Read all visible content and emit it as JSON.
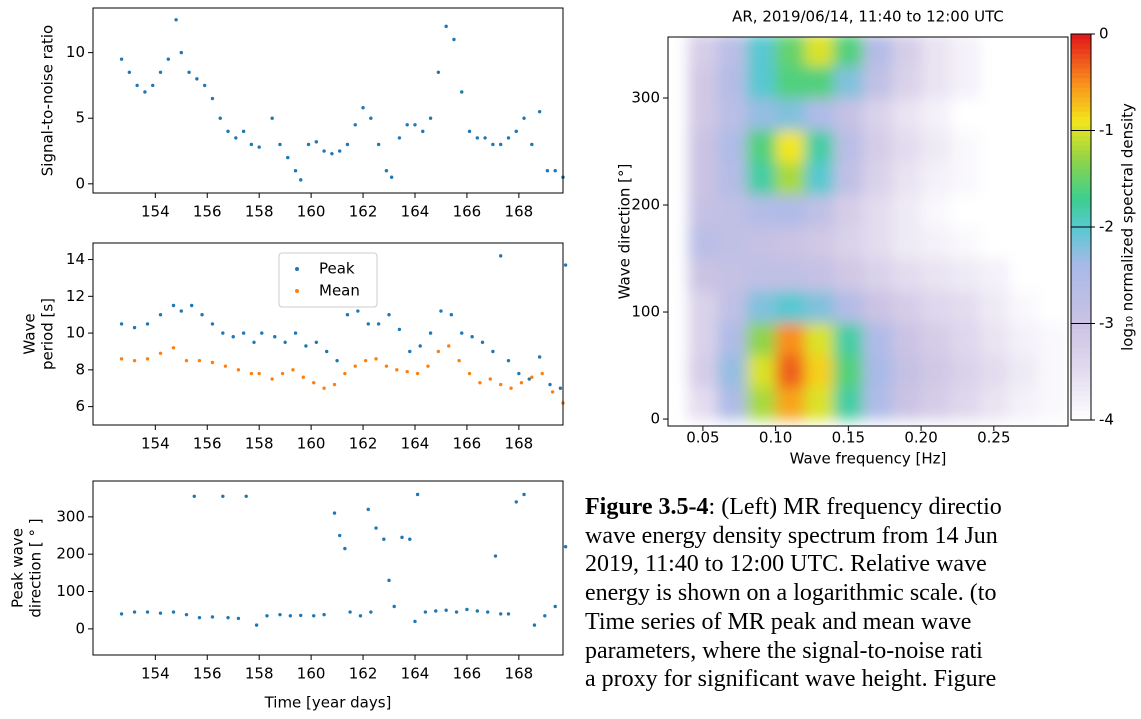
{
  "chart_data": [
    {
      "type": "scatter",
      "ylabel": "Signal-to-noise ratio",
      "xlim": [
        151.6,
        169.7
      ],
      "xticks": [
        154,
        156,
        158,
        160,
        162,
        164,
        166,
        168
      ],
      "ylim": [
        -0.7,
        13.4
      ],
      "yticks": [
        0,
        5,
        10
      ],
      "series": [
        {
          "color": "#1f77b4",
          "x": [
            152.7,
            153.0,
            153.3,
            153.6,
            153.9,
            154.2,
            154.5,
            154.8,
            155.0,
            155.3,
            155.6,
            155.9,
            156.2,
            156.5,
            156.8,
            157.1,
            157.4,
            157.7,
            158.0,
            158.5,
            158.8,
            159.1,
            159.4,
            159.6,
            159.9,
            160.2,
            160.5,
            160.8,
            161.1,
            161.4,
            161.7,
            162.0,
            162.3,
            162.6,
            162.9,
            163.1,
            163.4,
            163.7,
            164.0,
            164.3,
            164.6,
            164.9,
            165.2,
            165.5,
            165.8,
            166.1,
            166.4,
            166.7,
            167.0,
            167.3,
            167.6,
            167.9,
            168.2,
            168.5,
            168.8,
            169.1,
            169.4,
            169.7
          ],
          "values": [
            9.5,
            8.5,
            7.5,
            7.0,
            7.5,
            8.5,
            9.5,
            12.5,
            10,
            8.5,
            8.0,
            7.5,
            6.5,
            5,
            4,
            3.5,
            4,
            3,
            2.8,
            5,
            3,
            2,
            1,
            0.3,
            3,
            3.2,
            2.5,
            2.3,
            2.5,
            3,
            4.5,
            5.8,
            5,
            3,
            1,
            0.5,
            3.5,
            4.5,
            4.5,
            4,
            5,
            8.5,
            12,
            11,
            7,
            4,
            3.5,
            3.5,
            3,
            3,
            3.5,
            4,
            5,
            3,
            5.5,
            1,
            1,
            0.5
          ]
        }
      ]
    },
    {
      "type": "scatter",
      "ylabel": [
        "Wave",
        "period [s]"
      ],
      "xlim": [
        151.6,
        169.7
      ],
      "xticks": [
        154,
        156,
        158,
        160,
        162,
        164,
        166,
        168
      ],
      "ylim": [
        5.0,
        14.9
      ],
      "yticks": [
        6,
        8,
        10,
        12,
        14
      ],
      "legend": "upper center",
      "series": [
        {
          "name": "Peak",
          "color": "#1f77b4",
          "x": [
            152.7,
            153.2,
            153.7,
            154.2,
            154.7,
            155.0,
            155.4,
            155.8,
            156.2,
            156.6,
            157.0,
            157.4,
            157.8,
            158.1,
            158.6,
            159.0,
            159.4,
            159.8,
            160.2,
            160.6,
            161.0,
            161.4,
            161.8,
            162.2,
            162.6,
            163.0,
            163.4,
            163.8,
            164.2,
            164.6,
            165.0,
            165.4,
            165.8,
            166.2,
            166.6,
            167.0,
            167.3,
            167.6,
            168.0,
            168.4,
            168.8,
            169.2,
            169.6,
            169.8
          ],
          "values": [
            10.5,
            10.3,
            10.5,
            11,
            11.5,
            11.2,
            11.5,
            11,
            10.5,
            10,
            9.8,
            10,
            9.5,
            10,
            9.8,
            9.5,
            10,
            9.3,
            9.5,
            9,
            8.5,
            11,
            11.2,
            10.5,
            10.5,
            11,
            10.2,
            9,
            9.3,
            10,
            11.2,
            11,
            10,
            9.8,
            9.5,
            9,
            14.2,
            8.5,
            7.8,
            7.5,
            8.7,
            7.2,
            7.0,
            13.7
          ]
        },
        {
          "name": "Mean",
          "color": "#ff7f0e",
          "x": [
            152.7,
            153.2,
            153.7,
            154.2,
            154.7,
            155.2,
            155.7,
            156.2,
            156.7,
            157.2,
            157.7,
            158.0,
            158.5,
            158.9,
            159.3,
            159.7,
            160.1,
            160.5,
            160.9,
            161.3,
            161.7,
            162.1,
            162.5,
            162.9,
            163.3,
            163.7,
            164.1,
            164.5,
            164.9,
            165.3,
            165.7,
            166.1,
            166.5,
            166.9,
            167.3,
            167.7,
            168.1,
            168.5,
            168.9,
            169.3,
            169.7
          ],
          "values": [
            8.6,
            8.5,
            8.6,
            8.9,
            9.2,
            8.5,
            8.5,
            8.4,
            8.2,
            8.0,
            7.8,
            7.8,
            7.5,
            7.8,
            8,
            7.6,
            7.3,
            7.0,
            7.2,
            7.8,
            8.2,
            8.5,
            8.6,
            8.2,
            8.0,
            7.9,
            7.8,
            8.2,
            9.0,
            9.3,
            8.5,
            7.8,
            7.3,
            7.5,
            7.2,
            7.0,
            7.3,
            7.6,
            7.8,
            6.8,
            6.2
          ]
        }
      ]
    },
    {
      "type": "scatter",
      "ylabel": [
        "Peak wave",
        "direction [ ° ]"
      ],
      "xlabel": "Time [year days]",
      "xlim": [
        151.6,
        169.7
      ],
      "xticks": [
        154,
        156,
        158,
        160,
        162,
        164,
        166,
        168
      ],
      "ylim": [
        -70,
        396
      ],
      "yticks": [
        0,
        100,
        200,
        300
      ],
      "series": [
        {
          "color": "#1f77b4",
          "x": [
            152.7,
            153.2,
            153.7,
            154.2,
            154.7,
            155.2,
            155.5,
            155.7,
            156.2,
            156.6,
            156.8,
            157.2,
            157.5,
            157.9,
            158.3,
            158.8,
            159.2,
            159.6,
            160.1,
            160.5,
            160.9,
            161.1,
            161.3,
            161.5,
            161.9,
            162.2,
            162.3,
            162.5,
            162.8,
            163.0,
            163.2,
            163.5,
            163.8,
            164.0,
            164.1,
            164.4,
            164.8,
            165.2,
            165.6,
            166.0,
            166.4,
            166.8,
            167.1,
            167.3,
            167.6,
            167.9,
            168.2,
            168.6,
            169.0,
            169.4,
            169.8
          ],
          "values": [
            40,
            45,
            45,
            42,
            45,
            38,
            355,
            30,
            32,
            355,
            30,
            28,
            355,
            10,
            35,
            38,
            35,
            36,
            35,
            38,
            310,
            250,
            215,
            45,
            35,
            320,
            45,
            270,
            240,
            130,
            60,
            245,
            240,
            20,
            360,
            45,
            48,
            50,
            45,
            52,
            48,
            45,
            195,
            40,
            40,
            340,
            360,
            10,
            35,
            60,
            220
          ]
        }
      ]
    },
    {
      "type": "heatmap",
      "title": "AR, 2019/06/14, 11:40 to 12:00 UTC",
      "xlabel": "Wave frequency [Hz]",
      "ylabel": "Wave direction [°]",
      "xlim": [
        0.026,
        0.301
      ],
      "xticks": [
        0.05,
        {
          "value": 0.1,
          "label": "0.10"
        },
        0.15,
        {
          "value": 0.2,
          "label": "0.20"
        },
        0.25
      ],
      "ylim": [
        -6.5,
        357
      ],
      "yticks": [
        0,
        100,
        200,
        300
      ],
      "x": [
        0.05,
        0.07,
        0.09,
        0.11,
        0.13,
        0.15,
        0.17,
        0.19,
        0.21,
        0.23,
        0.25,
        0.27,
        0.29
      ],
      "y": [
        15,
        45,
        75,
        105,
        135,
        165,
        195,
        225,
        255,
        285,
        315,
        345
      ],
      "z": [
        [
          -3.5,
          -2.5,
          -1.2,
          -0.6,
          -1.0,
          -1.8,
          -2.5,
          -3,
          -3.2,
          -3.4,
          -3.6,
          -3.8,
          -3.9
        ],
        [
          -3.2,
          -2.3,
          -1.0,
          -0.3,
          -0.8,
          -1.6,
          -2.4,
          -2.9,
          -3.1,
          -3.3,
          -3.5,
          -3.7,
          -3.9
        ],
        [
          -3.3,
          -2.5,
          -1.3,
          -0.5,
          -1.0,
          -1.8,
          -2.5,
          -3,
          -3.2,
          -3.4,
          -3.6,
          -3.8,
          -3.9
        ],
        [
          -3.3,
          -2.8,
          -2.2,
          -2.0,
          -2.2,
          -2.6,
          -3,
          -3.2,
          -3.4,
          -3.5,
          -3.7,
          -3.9,
          null
        ],
        [
          -3.0,
          -2.9,
          -2.8,
          -2.8,
          -2.9,
          -3.1,
          -3.3,
          -3.5,
          -3.6,
          -3.7,
          -3.8,
          null,
          null
        ],
        [
          -2.7,
          -2.8,
          -2.9,
          -3.0,
          -3.1,
          -3.3,
          -3.5,
          -3.7,
          -3.8,
          -3.9,
          null,
          null,
          null
        ],
        [
          -2.9,
          -2.8,
          -2.6,
          -2.5,
          -2.8,
          -3.2,
          -3.5,
          -3.7,
          -3.9,
          null,
          null,
          null,
          null
        ],
        [
          -3.0,
          -2.6,
          -1.8,
          -1.2,
          -2.0,
          -2.8,
          -3.3,
          -3.6,
          -3.8,
          -3.9,
          null,
          null,
          null
        ],
        [
          -3.0,
          -2.5,
          -1.6,
          -0.9,
          -1.8,
          -2.7,
          -3.2,
          -3.5,
          -3.7,
          -3.9,
          null,
          null,
          null
        ],
        [
          -3.1,
          -2.7,
          -2.3,
          -2.2,
          -2.5,
          -2.9,
          -3.3,
          -3.6,
          -3.8,
          null,
          null,
          null,
          null
        ],
        [
          -3.1,
          -2.6,
          -2.0,
          -1.6,
          -1.6,
          -2.2,
          -2.8,
          -3.3,
          -3.6,
          -3.8,
          null,
          null,
          null
        ],
        [
          -3.2,
          -2.7,
          -2.0,
          -1.5,
          -1.0,
          -1.6,
          -2.6,
          -3.2,
          -3.6,
          -3.8,
          null,
          null,
          null
        ]
      ],
      "colorbar": {
        "label": "log₁₀ normalized spectral density",
        "lim": [
          -4,
          0
        ],
        "ticks": [
          0,
          -1,
          -2,
          -3,
          -4
        ]
      },
      "colorscale": [
        {
          "value": 0,
          "color": "#e0161b"
        },
        {
          "value": -0.5,
          "color": "#f98e1c"
        },
        {
          "value": -0.9,
          "color": "#f3e61b"
        },
        {
          "value": -1.3,
          "color": "#8fd44a"
        },
        {
          "value": -1.7,
          "color": "#3ccf8e"
        },
        {
          "value": -2,
          "color": "#58c8d0"
        },
        {
          "value": -2.4,
          "color": "#a9b9e8"
        },
        {
          "value": -3,
          "color": "#cbc3e3"
        },
        {
          "value": -3.5,
          "color": "#e3dcef"
        },
        {
          "value": -4,
          "color": "#ffffff"
        }
      ]
    }
  ],
  "caption": {
    "label": "Figure 3.5-4",
    "lines": [
      ": (Left) MR frequency directio",
      "wave energy density spectrum from 14 Jun",
      "2019, 11:40 to 12:00 UTC. Relative wave",
      "energy is shown on a logarithmic scale. (to",
      "Time series of MR peak and mean wave",
      "parameters, where the signal-to-noise rati",
      "a proxy for significant wave height.  Figure"
    ]
  }
}
